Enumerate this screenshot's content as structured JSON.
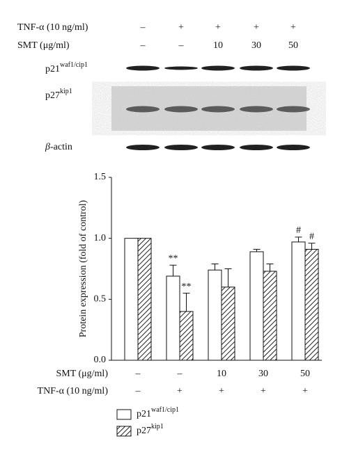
{
  "blot": {
    "rows": [
      {
        "label": "TNF-α (10 ng/ml)",
        "values": [
          "–",
          "+",
          "+",
          "+",
          "+"
        ]
      },
      {
        "label": "SMT (μg/ml)",
        "values": [
          "–",
          "–",
          "10",
          "30",
          "50"
        ]
      }
    ],
    "bands": [
      {
        "name": "p21",
        "sup": "waf1/cip1"
      },
      {
        "name": "p27",
        "sup": "kip1"
      },
      {
        "name": "β",
        "suffix": "-actin"
      }
    ]
  },
  "chart_data": {
    "type": "bar",
    "ylabel": "Protein expression (fold of control)",
    "categories": [
      "–",
      "–",
      "10",
      "30",
      "50"
    ],
    "categories_label": "SMT (μg/ml)",
    "tnf_labels": [
      "–",
      "+",
      "+",
      "+",
      "+"
    ],
    "tnf_label": "TNF-α (10 ng/ml)",
    "series": [
      {
        "name": "p21",
        "name_sup": "waf1/cip1",
        "color": "#ffffff",
        "pattern": "solid",
        "values": [
          1.0,
          0.69,
          0.74,
          0.89,
          0.97
        ],
        "errors": [
          0,
          0.09,
          0.05,
          0.02,
          0.04
        ],
        "annotations": [
          null,
          "**",
          null,
          null,
          "#"
        ]
      },
      {
        "name": "p27",
        "name_sup": "kip1",
        "color": "#ffffff",
        "pattern": "hatch",
        "values": [
          1.0,
          0.4,
          0.6,
          0.73,
          0.91
        ],
        "errors": [
          0,
          0.15,
          0.15,
          0.06,
          0.05
        ],
        "annotations": [
          null,
          "**",
          null,
          null,
          "#"
        ]
      }
    ],
    "ylim": [
      0,
      1.5
    ],
    "yticks": [
      {
        "value": 0,
        "label": "0.0"
      },
      0.5,
      {
        "value": 1,
        "label": "1.0"
      },
      1.5
    ]
  }
}
